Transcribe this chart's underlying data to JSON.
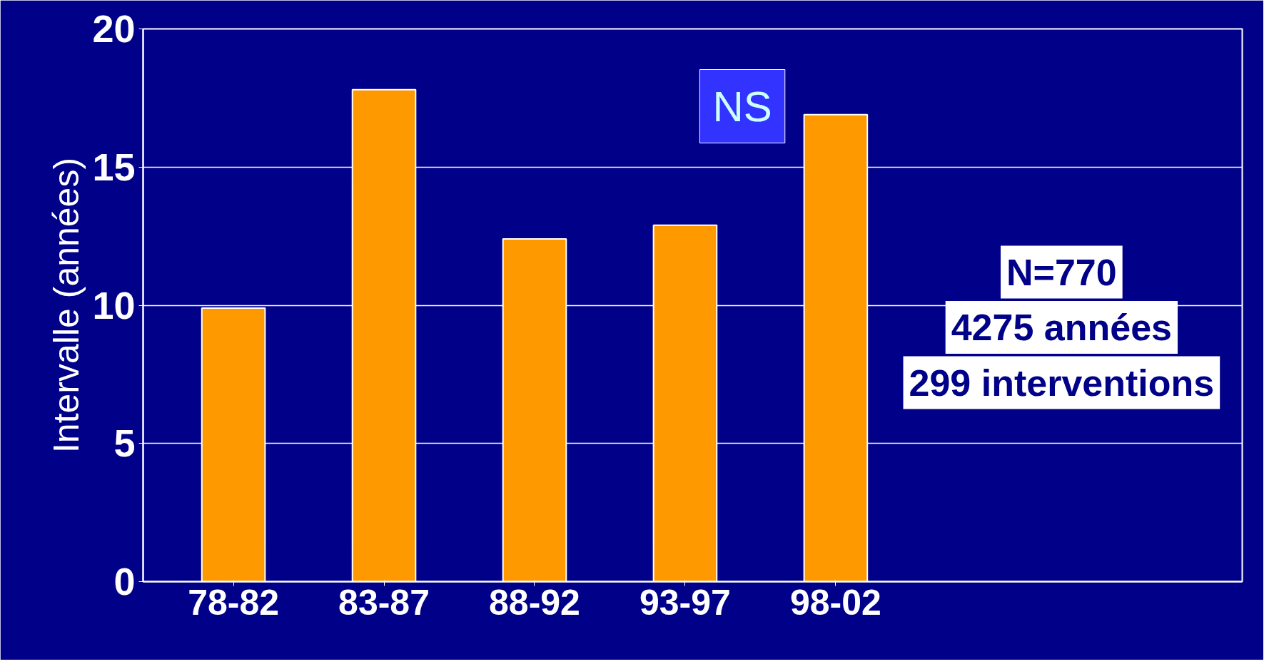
{
  "chart_data": {
    "type": "bar",
    "ylabel": "Intervalle (années)",
    "categories": [
      "78-82",
      "83-87",
      "88-92",
      "93-97",
      "98-02"
    ],
    "values": [
      9.9,
      17.8,
      12.4,
      12.9,
      16.9
    ],
    "color": "#ff9900",
    "ylim": [
      0,
      20
    ],
    "yticks": [
      0,
      5,
      10,
      15,
      20
    ],
    "grid": "y",
    "annotations": [
      "NS",
      "N=770\n4275 années\n299 interventions"
    ]
  }
}
